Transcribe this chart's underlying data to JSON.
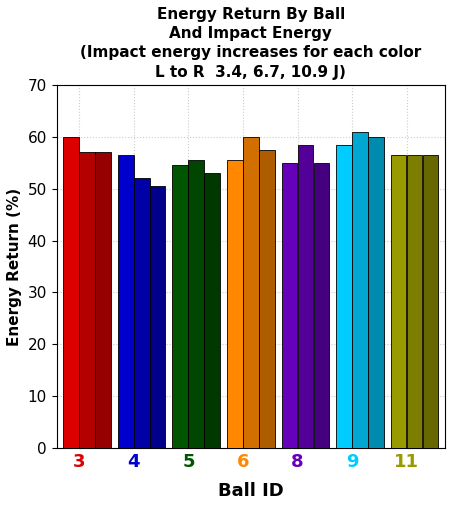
{
  "title_line1": "Energy Return By Ball",
  "title_line2": "And Impact Energy",
  "title_line3": "(Impact energy increases for each color",
  "title_line4": "L to R  3.4, 6.7, 10.9 J)",
  "xlabel": "Ball ID",
  "ylabel": "Energy Return (%)",
  "ylim": [
    0,
    70
  ],
  "yticks": [
    0,
    10,
    20,
    30,
    40,
    50,
    60,
    70
  ],
  "bar_groups": [
    {
      "ball": "3",
      "values": [
        60.0,
        57.0,
        57.0
      ],
      "base_color": "#dd0000"
    },
    {
      "ball": "4",
      "values": [
        56.5,
        52.0,
        50.5
      ],
      "base_color": "#0000cc"
    },
    {
      "ball": "5",
      "values": [
        54.5,
        55.5,
        53.0
      ],
      "base_color": "#005500"
    },
    {
      "ball": "6",
      "values": [
        55.5,
        60.0,
        57.5
      ],
      "base_color": "#ff8800"
    },
    {
      "ball": "8",
      "values": [
        55.0,
        58.5,
        55.0
      ],
      "base_color": "#6600bb"
    },
    {
      "ball": "9",
      "values": [
        58.5,
        61.0,
        60.0
      ],
      "base_color": "#00ccff"
    },
    {
      "ball": "11",
      "values": [
        56.5,
        56.5,
        56.5
      ],
      "base_color": "#999900"
    }
  ],
  "tick_label_colors": [
    "#dd0000",
    "#0000cc",
    "#005500",
    "#ff8800",
    "#6600bb",
    "#00ccff",
    "#999900"
  ],
  "background_color": "#ffffff",
  "grid_color": "#cccccc"
}
